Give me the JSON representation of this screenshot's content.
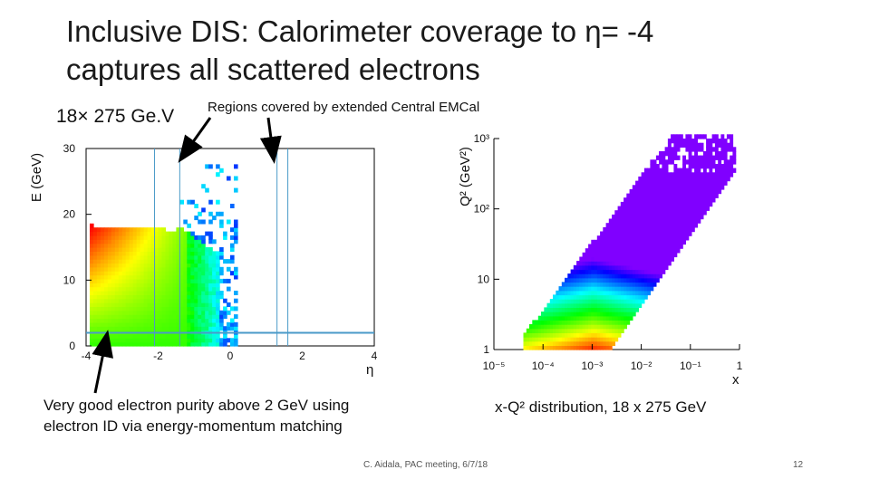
{
  "slide": {
    "title_line1": "Inclusive DIS: Calorimeter coverage to η= -4",
    "title_line2": "captures all scattered electrons",
    "beam_label": "18× 275 Ge.V",
    "regions_label": "Regions covered by extended Central EMCal",
    "caption_left_line1": "Very good electron purity above 2 GeV using",
    "caption_left_line2": "electron ID via energy-momentum matching",
    "caption_right": "x-Q² distribution, 18 x 275 GeV",
    "footer_center": "C. Aidala, PAC meeting, 6/7/18",
    "footer_page": "12"
  },
  "chart_data": [
    {
      "type": "heatmap",
      "title": "",
      "xlabel": "η",
      "ylabel": "E (GeV)",
      "xlim": [
        -4,
        4
      ],
      "ylim": [
        0,
        30
      ],
      "x_ticks": [
        "-4",
        "-2",
        "0",
        "2",
        "4"
      ],
      "y_ticks": [
        "0",
        "10",
        "20",
        "30"
      ],
      "region_lines_eta": [
        -2.1,
        -1.4,
        1.3,
        1.6
      ],
      "threshold_line_E": 2,
      "colors": {
        "low": "#2a2aff",
        "mid": "#30e060",
        "high": "#ff1a00",
        "lines": "#4a9ac8"
      }
    },
    {
      "type": "heatmap",
      "title": "",
      "xlabel": "x",
      "ylabel": "Q² (GeV²)",
      "x_scale": "log",
      "y_scale": "log",
      "xlim": [
        1e-05,
        1
      ],
      "ylim": [
        1,
        1000
      ],
      "x_ticks": [
        "10⁻⁵",
        "10⁻⁴",
        "10⁻³",
        "10⁻²",
        "10⁻¹",
        "1"
      ],
      "y_ticks": [
        "1",
        "10",
        "10²",
        "10³"
      ],
      "colors": {
        "low": "#7a00ff",
        "mid": "#30e060",
        "high": "#ff1a00"
      }
    }
  ]
}
